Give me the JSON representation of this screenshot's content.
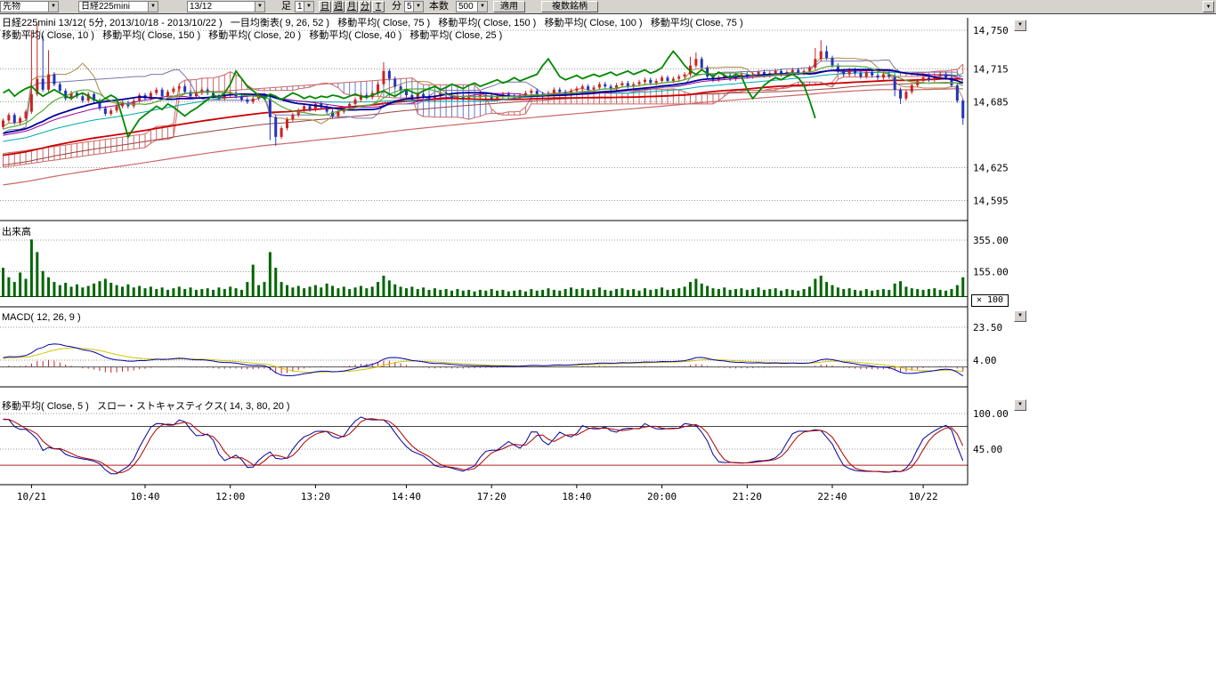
{
  "icons": {
    "dropdown": "▼"
  },
  "toolbar": {
    "market": "先物",
    "symbol": "日経225mini",
    "contract": "13/12",
    "ashi_label": "足",
    "ashi_value": "1",
    "period_buttons": [
      "日",
      "週",
      "月",
      "分",
      "T"
    ],
    "minute_label": "分",
    "minute_value": "5",
    "bars_label": "本数",
    "bars_value": "500",
    "apply": "適用",
    "multi": "複数銘柄"
  },
  "panes": {
    "price": {
      "legend_line1": "日経225mini 13/12( 5分, 2013/10/18 - 2013/10/22 )   一目均衡表( 9, 26, 52 )   移動平均( Close, 75 )   移動平均( Close, 150 )   移動平均( Close, 100 )   移動平均( Close, 75 )",
      "legend_line2": "移動平均( Close, 10 )   移動平均( Close, 150 )   移動平均( Close, 20 )   移動平均( Close, 40 )   移動平均( Close, 25 )",
      "axis": [
        {
          "label": "14,750",
          "value": 14750
        },
        {
          "label": "14,715",
          "value": 14715
        },
        {
          "label": "14,685",
          "value": 14685
        },
        {
          "label": "14,625",
          "value": 14625
        },
        {
          "label": "14,595",
          "value": 14595
        }
      ]
    },
    "volume": {
      "label": "出来高",
      "multiplier": "× 100",
      "axis": [
        {
          "label": "355.00",
          "value": 355
        },
        {
          "label": "155.00",
          "value": 155
        }
      ]
    },
    "macd": {
      "label": "MACD( 12, 26, 9 )",
      "axis": [
        {
          "label": "23.50",
          "value": 23.5
        },
        {
          "label": "4.00",
          "value": 4
        }
      ]
    },
    "stoch": {
      "label": "移動平均( Close, 5 )   スロー・ストキャスティクス( 14, 3, 80, 20 )",
      "axis": [
        {
          "label": "100.00",
          "value": 100
        },
        {
          "label": "45.00",
          "value": 45
        }
      ],
      "upper_band": 80,
      "lower_band": 20
    }
  },
  "x_axis": {
    "ticks": [
      {
        "label": "10/21",
        "i": 5
      },
      {
        "label": "10:40",
        "i": 25
      },
      {
        "label": "12:00",
        "i": 40
      },
      {
        "label": "13:20",
        "i": 55
      },
      {
        "label": "14:40",
        "i": 71
      },
      {
        "label": "17:20",
        "i": 86
      },
      {
        "label": "18:40",
        "i": 101
      },
      {
        "label": "20:00",
        "i": 116
      },
      {
        "label": "21:20",
        "i": 131
      },
      {
        "label": "22:40",
        "i": 146
      },
      {
        "label": "10/22",
        "i": 162
      }
    ]
  },
  "chart_data": {
    "type": "candlestick+volume+macd+stochastics",
    "symbol": "日経225mini 13/12",
    "interval": "5分",
    "date_range": "2013/10/18 - 2013/10/22",
    "price_axis": {
      "top_price_at_pane_top": 14755,
      "bottom_price_at_pane_bottom": 14577
    },
    "first_open": 14662,
    "closes": [
      14668,
      14673,
      14666,
      14670,
      14676,
      14692,
      14706,
      14696,
      14710,
      14701,
      14695,
      14688,
      14693,
      14690,
      14686,
      14692,
      14686,
      14679,
      14674,
      14677,
      14681,
      14684,
      14681,
      14686,
      14691,
      14688,
      14693,
      14696,
      14690,
      14694,
      14697,
      14699,
      14694,
      14690,
      14693,
      14696,
      14693,
      14690,
      14688,
      14691,
      14693,
      14690,
      14687,
      14685,
      14688,
      14691,
      14688,
      14671,
      14653,
      14661,
      14669,
      14673,
      14677,
      14681,
      14678,
      14683,
      14680,
      14676,
      14672,
      14676,
      14679,
      14683,
      14687,
      14691,
      14689,
      14693,
      14701,
      14713,
      14706,
      14699,
      14695,
      14691,
      14688,
      14692,
      14690,
      14687,
      14690,
      14693,
      14691,
      14688,
      14690,
      14688,
      14690,
      14689,
      14691,
      14690,
      14688,
      14690,
      14692,
      14690,
      14689,
      14691,
      14693,
      14695,
      14692,
      14690,
      14693,
      14696,
      14694,
      14692,
      14695,
      14697,
      14699,
      14696,
      14698,
      14701,
      14699,
      14697,
      14700,
      14702,
      14699,
      14701,
      14703,
      14705,
      14702,
      14704,
      14707,
      14704,
      14706,
      14708,
      14710,
      14718,
      14724,
      14716,
      14708,
      14705,
      14707,
      14709,
      14706,
      14708,
      14710,
      14708,
      14710,
      14712,
      14709,
      14711,
      14713,
      14710,
      14712,
      14714,
      14711,
      14713,
      14716,
      14724,
      14731,
      14725,
      14718,
      14713,
      14710,
      14714,
      14711,
      14708,
      14712,
      14709,
      14707,
      14710,
      14708,
      14696,
      14688,
      14694,
      14700,
      14704,
      14707,
      14705,
      14708,
      14710,
      14707,
      14700,
      14686,
      14670
    ],
    "volumes_x100": [
      180,
      120,
      90,
      150,
      110,
      360,
      280,
      160,
      120,
      90,
      70,
      85,
      60,
      75,
      55,
      65,
      80,
      95,
      110,
      85,
      70,
      60,
      75,
      55,
      65,
      50,
      60,
      45,
      55,
      40,
      50,
      60,
      45,
      55,
      40,
      45,
      50,
      40,
      55,
      45,
      60,
      50,
      40,
      90,
      200,
      70,
      90,
      280,
      180,
      90,
      70,
      55,
      65,
      50,
      60,
      70,
      55,
      80,
      65,
      50,
      60,
      45,
      55,
      65,
      50,
      60,
      90,
      130,
      100,
      75,
      60,
      50,
      60,
      45,
      55,
      40,
      50,
      40,
      45,
      35,
      45,
      35,
      40,
      30,
      40,
      35,
      45,
      35,
      40,
      30,
      35,
      40,
      30,
      45,
      35,
      40,
      50,
      40,
      35,
      45,
      55,
      45,
      50,
      40,
      45,
      55,
      40,
      35,
      45,
      50,
      40,
      45,
      35,
      50,
      40,
      45,
      55,
      40,
      45,
      50,
      60,
      90,
      110,
      80,
      65,
      50,
      45,
      55,
      40,
      45,
      50,
      40,
      45,
      55,
      40,
      45,
      50,
      35,
      45,
      40,
      35,
      45,
      60,
      110,
      130,
      90,
      70,
      55,
      45,
      50,
      40,
      35,
      45,
      35,
      40,
      45,
      40,
      80,
      95,
      60,
      50,
      45,
      40,
      45,
      50,
      40,
      35,
      45,
      70,
      120
    ],
    "high_overrides": [
      [
        5,
        14750
      ],
      [
        6,
        14756
      ],
      [
        7,
        14745
      ],
      [
        8,
        14732
      ],
      [
        67,
        14721
      ],
      [
        121,
        14726
      ],
      [
        122,
        14730
      ],
      [
        143,
        14734
      ],
      [
        144,
        14741
      ],
      [
        145,
        14736
      ]
    ],
    "low_overrides": [
      [
        47,
        14650
      ],
      [
        48,
        14645
      ],
      [
        157,
        14690
      ],
      [
        158,
        14683
      ],
      [
        169,
        14664
      ]
    ],
    "ma_seed": {
      "count": 150,
      "start": 14555,
      "end": 14662
    },
    "indicators": {
      "ichimoku": [
        9,
        26,
        52
      ],
      "ma_overlays": [
        10,
        20,
        25,
        40,
        75,
        100,
        150
      ],
      "macd": [
        12,
        26,
        9
      ],
      "slow_stochastics": [
        14,
        3,
        80,
        20
      ],
      "stoch_pane_ma": 5
    },
    "colors": {
      "up": "#cc2222",
      "down": "#2233bb",
      "ma10": "#55aa33",
      "ma20": "#000099",
      "ma25": "#990099",
      "ma40": "#00aaaa",
      "ma75": "#cc0000",
      "ma100": "#994444",
      "ma150": "#cc6666",
      "chikou": "#008800",
      "tenkan": "#aa8844",
      "kijun": "#7777aa",
      "cloud_up": "#cc6666",
      "cloud_down": "#6677cc",
      "volume": "#006600",
      "macd": "#0000aa",
      "macd_signal": "#d4c400",
      "macd_hist": "#cc2222",
      "stoch_k": "#000099",
      "stoch_d": "#aa0000",
      "grid": "#999999",
      "axis": "#000000"
    }
  }
}
